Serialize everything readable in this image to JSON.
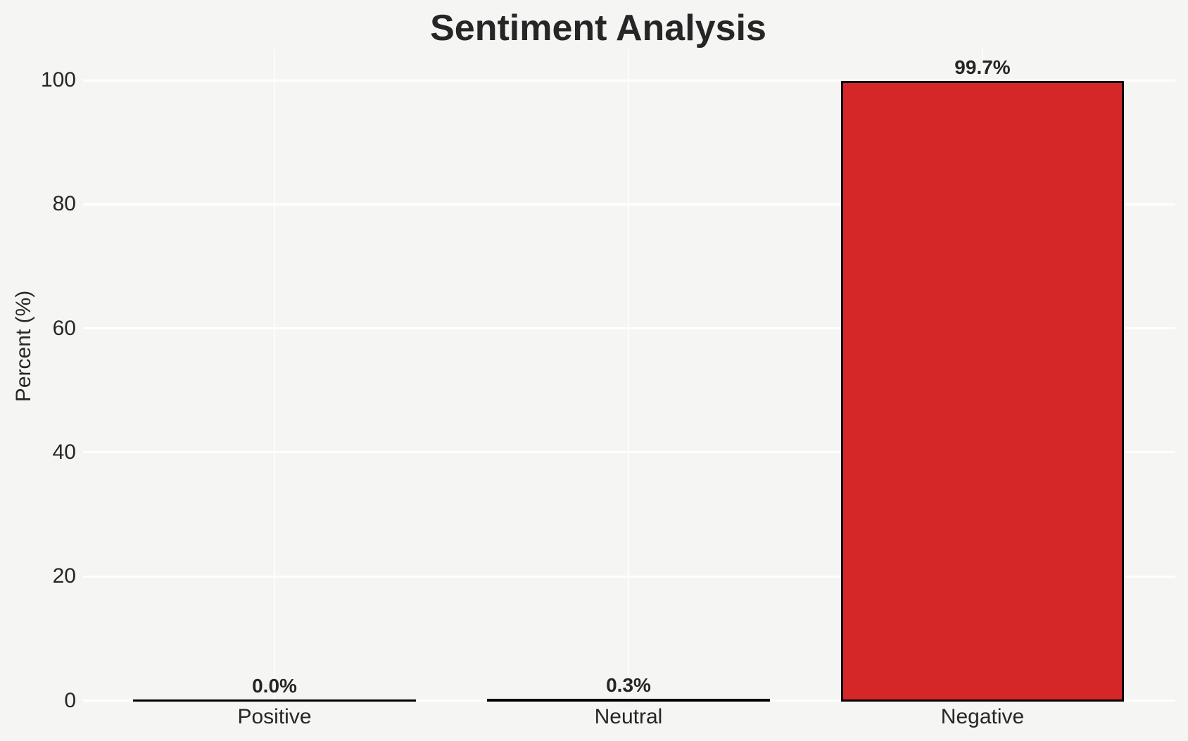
{
  "chart_data": {
    "type": "bar",
    "title": "Sentiment Analysis",
    "ylabel": "Percent (%)",
    "xlabel": "",
    "categories": [
      "Positive",
      "Neutral",
      "Negative"
    ],
    "values": [
      0.0,
      0.3,
      99.7
    ],
    "value_labels": [
      "0.0%",
      "0.3%",
      "99.7%"
    ],
    "yticks": [
      0,
      20,
      40,
      60,
      80,
      100
    ],
    "ytick_labels": [
      "0",
      "20",
      "40",
      "60",
      "80",
      "100"
    ],
    "ylim": [
      0,
      105
    ],
    "grid": "white horizontal and vertical gridlines",
    "legend": false,
    "colors": {
      "bar_fill": "#d62728",
      "bar_edge": "#000000",
      "background": "#f5f5f4",
      "gridline": "#ffffff",
      "text": "#262626"
    }
  }
}
